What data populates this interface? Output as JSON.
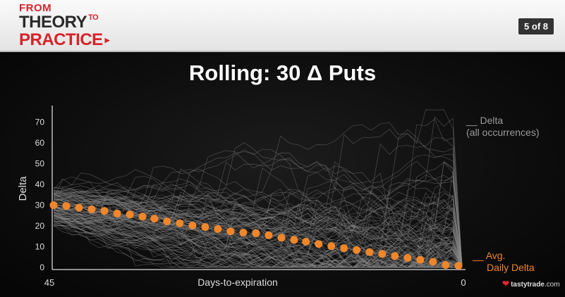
{
  "header": {
    "logo_from": "FROM",
    "logo_theory": "THEORY",
    "logo_to": "TO",
    "logo_practice": "PRACTICE",
    "page_indicator": "5 of 8"
  },
  "slide": {
    "title": "Rolling: 30 Δ Puts"
  },
  "legend": {
    "delta_line1": "__ Delta",
    "delta_line2": "(all occurrences)",
    "avg_line1": "__ Avg.",
    "avg_line2": "Daily Delta"
  },
  "brand": {
    "name": "tastytrade",
    "suffix": ".com"
  },
  "colors": {
    "avg_marker": "#f0862a",
    "occurrence_lines": "#8a8a8a",
    "brand_red": "#d6232a"
  },
  "chart_data": {
    "type": "line",
    "title": "Rolling: 30 Δ Puts",
    "xlabel": "Days-to-expiration",
    "ylabel": "Delta",
    "x_tick_labels": [
      "45",
      "0"
    ],
    "y_ticks": [
      0,
      10,
      20,
      30,
      40,
      50,
      60,
      70
    ],
    "xlim": [
      45,
      0
    ],
    "ylim": [
      0,
      78
    ],
    "grid": false,
    "legend_position": "right",
    "series": [
      {
        "name": "Avg. Daily Delta",
        "marker": "circle",
        "x": [
          45,
          43.6,
          42.2,
          40.8,
          39.4,
          38.0,
          36.6,
          35.2,
          33.9,
          32.5,
          31.1,
          29.7,
          28.3,
          26.9,
          25.5,
          24.1,
          22.7,
          21.3,
          19.9,
          18.5,
          17.2,
          15.8,
          14.4,
          13.0,
          11.6,
          10.2,
          8.8,
          7.4,
          6.0,
          4.6,
          3.2,
          1.8,
          0.4
        ],
        "values": [
          30,
          29.6,
          28.8,
          28.0,
          27.2,
          26.0,
          25.5,
          24.5,
          23.5,
          22.2,
          21.3,
          20.2,
          19.5,
          18.5,
          17.4,
          16.8,
          16.5,
          15.5,
          14.3,
          13.3,
          12.4,
          11.3,
          10.3,
          9.3,
          8.4,
          7.4,
          6.5,
          5.5,
          4.6,
          3.7,
          2.7,
          1.2,
          0.8
        ]
      }
    ],
    "occurrences_note_series": "Delta (all occurrences)"
  }
}
